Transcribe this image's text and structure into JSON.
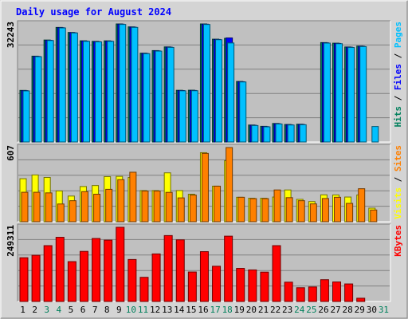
{
  "chart_data": {
    "type": "bar",
    "title": "Daily usage for August 2024",
    "days": [
      "1",
      "2",
      "3",
      "4",
      "5",
      "6",
      "7",
      "8",
      "9",
      "10",
      "11",
      "12",
      "13",
      "14",
      "15",
      "16",
      "17",
      "18",
      "19",
      "20",
      "21",
      "22",
      "23",
      "24",
      "25",
      "26",
      "27",
      "28",
      "29",
      "30",
      "31"
    ],
    "weekend_days": [
      "3",
      "4",
      "10",
      "11",
      "17",
      "18",
      "24",
      "25",
      "31"
    ],
    "colors": {
      "hits": "#00805c",
      "files": "#0000ff",
      "pages": "#00c0ff",
      "visits": "#ffff00",
      "sites": "#ff8000",
      "kbytes": "#ff0000",
      "title": "#0000ff",
      "background": "#c0c0c0",
      "frame": "#d4d4d4",
      "weekday_label": "#000000",
      "weekend_label": "#00805c"
    },
    "panels": [
      {
        "id": "hits_panel",
        "ymax_label": "32243",
        "ylim": [
          0,
          32243
        ],
        "legend": [
          {
            "key": "pages",
            "label": "Pages"
          },
          {
            "key": "files",
            "label": "Files"
          },
          {
            "key": "hits",
            "label": "Hits"
          }
        ],
        "series": [
          {
            "key": "hits",
            "values": [
              14090,
              23440,
              27850,
              31290,
              29920,
              27640,
              27480,
              27630,
              32240,
              31440,
              24260,
              24960,
              25970,
              14120,
              14140,
              32240,
              28080,
              28310,
              16530,
              4630,
              4270,
              5050,
              4780,
              4850,
              1,
              27150,
              26990,
              25950,
              26190,
              1,
              1
            ]
          },
          {
            "key": "files",
            "values": [
              14020,
              23370,
              27780,
              31220,
              29850,
              27570,
              27410,
              27560,
              32180,
              31370,
              24190,
              24890,
              25900,
              14050,
              14070,
              32170,
              28010,
              28410,
              16460,
              4560,
              4200,
              4980,
              4710,
              4780,
              1,
              27080,
              26920,
              25880,
              26120,
              1,
              1
            ]
          },
          {
            "key": "pages",
            "values": [
              13950,
              23300,
              27710,
              31150,
              29780,
              27500,
              27340,
              27490,
              32110,
              31300,
              24120,
              24820,
              25830,
              13980,
              14000,
              32100,
              27940,
              27040,
              16390,
              4490,
              4130,
              4910,
              4640,
              4710,
              1,
              27010,
              26850,
              25810,
              26050,
              4220,
              1
            ]
          }
        ]
      },
      {
        "id": "visits_panel",
        "ymax_label": "607",
        "ylim": [
          0,
          607
        ],
        "legend": [
          {
            "key": "sites",
            "label": "Sites"
          },
          {
            "key": "visits",
            "label": "Visits"
          }
        ],
        "series": [
          {
            "key": "visits",
            "values": [
              352,
              383,
              362,
              252,
              210,
              288,
              296,
              369,
              371,
              362,
              255,
              255,
              400,
              255,
              225,
              565,
              291,
              499,
              200,
              192,
              192,
              202,
              260,
              183,
              165,
              220,
              219,
              202,
              219,
              111,
              1
            ]
          },
          {
            "key": "sites",
            "values": [
              241,
              241,
              236,
              145,
              172,
              246,
              225,
              265,
              344,
              405,
              251,
              251,
              240,
              195,
              218,
              559,
              291,
              607,
              200,
              189,
              189,
              260,
              197,
              172,
              146,
              190,
              200,
              150,
              270,
              96,
              1
            ]
          }
        ]
      },
      {
        "id": "kbytes_panel",
        "ymax_label": "249311",
        "ylim": [
          0,
          249311
        ],
        "legend": [
          {
            "key": "kbytes",
            "label": "KBytes"
          }
        ],
        "series": [
          {
            "key": "kbytes",
            "values": [
              147010,
              155220,
              187630,
              215650,
              133910,
              168300,
              211720,
              206110,
              249311,
              141050,
              81160,
              159820,
              221490,
              207080,
              99030,
              167470,
              118400,
              219470,
              111110,
              106060,
              98640,
              187630,
              64850,
              46140,
              48770,
              73140,
              65590,
              58860,
              10870,
              1,
              1
            ]
          }
        ]
      }
    ]
  }
}
